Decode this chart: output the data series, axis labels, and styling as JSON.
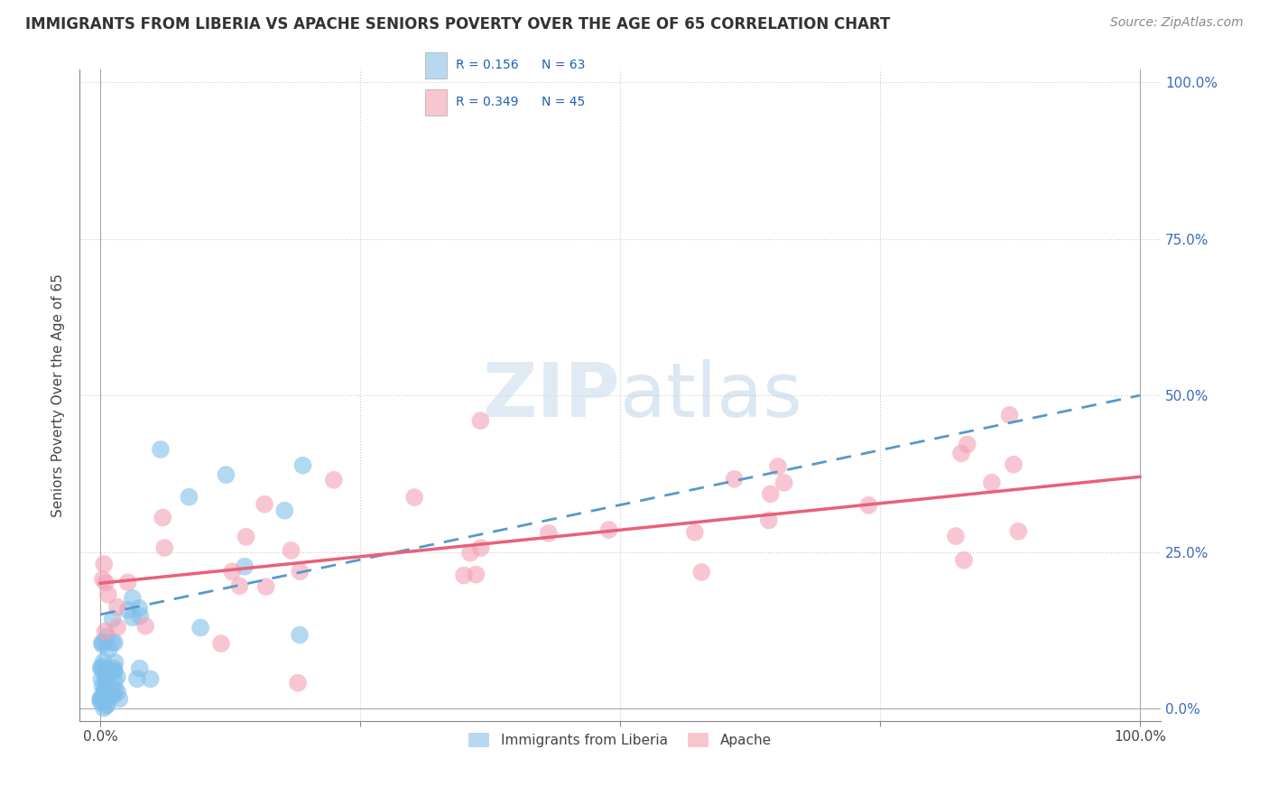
{
  "title": "IMMIGRANTS FROM LIBERIA VS APACHE SENIORS POVERTY OVER THE AGE OF 65 CORRELATION CHART",
  "source": "Source: ZipAtlas.com",
  "ylabel": "Seniors Poverty Over the Age of 65",
  "legend_labels": [
    "Immigrants from Liberia",
    "Apache"
  ],
  "legend_r": [
    "R = 0.156",
    "N = 63"
  ],
  "legend_r2": [
    "R = 0.349",
    "N = 45"
  ],
  "color_blue": "#7fbfea",
  "color_pink": "#f4a0b5",
  "color_blue_line": "#5599cc",
  "color_pink_line": "#e8607a",
  "color_blue_legend": "#b8d8f0",
  "color_pink_legend": "#f9c6cf",
  "watermark_zip": "ZIP",
  "watermark_atlas": "atlas",
  "background": "#ffffff",
  "grid_color": "#cccccc",
  "blue_line_start_y": 15.0,
  "blue_line_end_y": 50.0,
  "pink_line_start_y": 20.0,
  "pink_line_end_y": 37.0,
  "xlim": [
    0,
    100
  ],
  "ylim": [
    0,
    100
  ]
}
